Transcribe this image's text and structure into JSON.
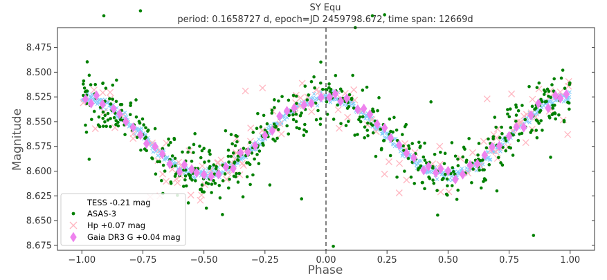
{
  "chart_data": {
    "type": "scatter",
    "title": "SY Equ",
    "subtitle": "period: 0.1658727 d, epoch=JD 2459798.672, time span: 12669d",
    "xlabel": "Phase",
    "ylabel": "Magnitude",
    "xlim": [
      -1.1,
      1.1
    ],
    "ylim": [
      8.68,
      8.455
    ],
    "y_inverted": true,
    "x_ticks": [
      -1.0,
      -0.75,
      -0.5,
      -0.25,
      0.0,
      0.25,
      0.5,
      0.75,
      1.0
    ],
    "x_tick_labels": [
      "−1.00",
      "−0.75",
      "−0.50",
      "−0.25",
      "0.00",
      "0.25",
      "0.50",
      "0.75",
      "1.00"
    ],
    "y_ticks": [
      8.475,
      8.5,
      8.525,
      8.55,
      8.575,
      8.6,
      8.625,
      8.65,
      8.675
    ],
    "y_tick_labels": [
      "8.475",
      "8.500",
      "8.525",
      "8.550",
      "8.575",
      "8.600",
      "8.625",
      "8.650",
      "8.675"
    ],
    "vertical_line_x": 0.0,
    "legend_position": "lower-left",
    "model": {
      "mean_mag": 8.5645,
      "amplitude": 0.039,
      "light_curve": "magnitude = mean_mag - amplitude * cos(2*pi*phase)"
    },
    "series": [
      {
        "name": "TESS -0.21 mag",
        "marker": "x-dense",
        "color": "#87cefa",
        "points_per_cycle": 300,
        "scatter_mag": 0.004
      },
      {
        "name": "ASAS-3",
        "marker": "circle",
        "color": "#008000",
        "scatter_mag": 0.022,
        "sample_points": [
          [
            -0.97,
            8.588
          ],
          [
            -0.91,
            8.443
          ],
          [
            -0.76,
            8.438
          ],
          [
            -0.66,
            8.6
          ],
          [
            -0.55,
            8.59
          ],
          [
            -0.4,
            8.585
          ],
          [
            -0.34,
            8.626
          ],
          [
            -0.23,
            8.614
          ],
          [
            -0.1,
            8.628
          ],
          [
            -0.08,
            8.56
          ],
          [
            0.03,
            8.676
          ],
          [
            0.12,
            8.455
          ],
          [
            0.19,
            8.443
          ],
          [
            0.24,
            8.442
          ],
          [
            0.43,
            8.53
          ],
          [
            0.7,
            8.62
          ],
          [
            0.85,
            8.665
          ],
          [
            0.92,
            8.586
          ],
          [
            0.97,
            8.498
          ]
        ]
      },
      {
        "name": "Hp +0.07 mag",
        "marker": "x",
        "color": "#ffb6c1",
        "scatter_mag": 0.017,
        "sample_points": [
          [
            -0.95,
            8.518
          ],
          [
            -0.79,
            8.567
          ],
          [
            -0.72,
            8.626
          ],
          [
            -0.68,
            8.625
          ],
          [
            -0.33,
            8.519
          ],
          [
            -0.26,
            8.516
          ],
          [
            -0.04,
            8.518
          ],
          [
            0.05,
            8.538
          ],
          [
            0.24,
            8.603
          ],
          [
            0.3,
            8.622
          ],
          [
            0.33,
            8.609
          ],
          [
            0.47,
            8.621
          ],
          [
            0.66,
            8.527
          ],
          [
            0.76,
            8.522
          ],
          [
            0.96,
            8.52
          ],
          [
            0.99,
            8.563
          ]
        ]
      },
      {
        "name": "Gaia DR3 G +0.04 mag",
        "marker": "diamond",
        "color": "#ee82ee",
        "phases": [
          -0.985,
          -0.962,
          -0.94,
          -0.915,
          -0.87,
          -0.845,
          -0.82,
          -0.79,
          -0.76,
          -0.735,
          -0.7,
          -0.67,
          -0.64,
          -0.6,
          -0.58,
          -0.55,
          -0.53,
          -0.5,
          -0.47,
          -0.44,
          -0.41,
          -0.38,
          -0.35,
          -0.32,
          -0.29,
          -0.25,
          -0.22,
          -0.19,
          -0.16,
          -0.13,
          -0.09,
          -0.06,
          -0.02,
          0.015,
          0.038,
          0.06,
          0.085,
          0.13,
          0.155,
          0.18,
          0.21,
          0.24,
          0.265,
          0.3,
          0.33,
          0.36,
          0.4,
          0.42,
          0.45,
          0.47,
          0.5,
          0.53,
          0.56,
          0.59,
          0.62,
          0.65,
          0.68,
          0.71,
          0.75,
          0.78,
          0.81,
          0.84,
          0.87,
          0.91,
          0.94,
          0.96,
          0.985
        ]
      }
    ]
  }
}
